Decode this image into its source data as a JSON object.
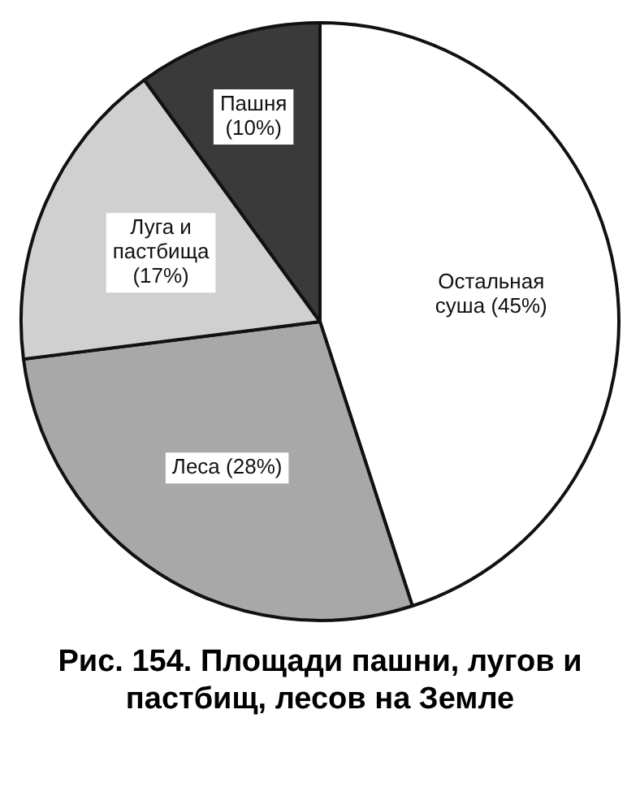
{
  "chart_data": {
    "type": "pie",
    "title": "Рис. 154. Площади пашни, лугов и пастбищ, лесов на Земле",
    "categories": [
      "Остальная суша",
      "Леса",
      "Луга и пастбища",
      "Пашня"
    ],
    "values": [
      45,
      28,
      17,
      10
    ],
    "value_labels": [
      "(45%)",
      "(28%)",
      "(17%)",
      "(10%)"
    ],
    "colors": [
      "#ffffff",
      "#a8a8a8",
      "#d0d0d0",
      "#3a3a3a"
    ],
    "legend": false
  }
}
